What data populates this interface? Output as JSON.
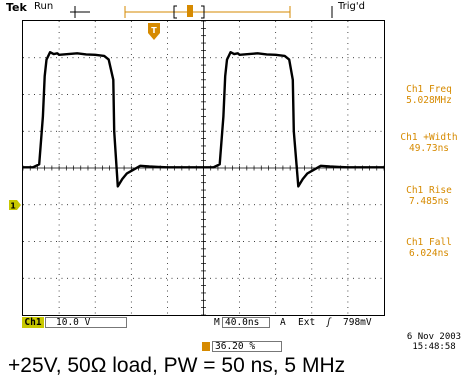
{
  "header": {
    "brand": "Tek",
    "run_state": "Run",
    "trigger_status": "Trig'd",
    "trigger_marker": "T"
  },
  "measurements": [
    {
      "label": "Ch1 Freq",
      "value": "5.028MHz"
    },
    {
      "label": "Ch1 +Width",
      "value": "49.73ns"
    },
    {
      "label": "Ch1 Rise",
      "value": "7.485ns"
    },
    {
      "label": "Ch1 Fall",
      "value": "6.024ns"
    }
  ],
  "channel": {
    "marker": "1",
    "name": "Ch1",
    "scale": "10.0 V"
  },
  "timebase": {
    "prefix": "M",
    "value": "40.0ns",
    "trigger_source": "A",
    "trigger_type": "Ext",
    "trigger_slope": "ʃ",
    "trigger_level": "798mV"
  },
  "trigger_position": {
    "marker": "T",
    "value": "36.20 %"
  },
  "timestamp": {
    "date": "6 Nov 2003",
    "time": "15:48:58"
  },
  "caption": "+25V, 50Ω load, PW = 50 ns, 5 MHz",
  "colors": {
    "trace": "#000000",
    "grid": "#000000",
    "trigger_accent": "#d68a00",
    "channel_accent": "#c8c800",
    "background": "#ffffff"
  },
  "chart_data": {
    "type": "line",
    "series": [
      {
        "x": [
          -200,
          -189,
          -182,
          -178,
          -176,
          -174,
          -170,
          -166,
          -162,
          -160,
          -150,
          -140,
          -130,
          -120,
          -110,
          -105,
          -100,
          -99,
          -95,
          -90,
          -85,
          -80,
          -70,
          -60,
          -50,
          -40,
          -30,
          -20,
          -10,
          0,
          11,
          18,
          22,
          24,
          26,
          30,
          34,
          38,
          40,
          50,
          60,
          70,
          80,
          90,
          95,
          99,
          100,
          105,
          110,
          115,
          120,
          130,
          140,
          150,
          160,
          170,
          180,
          190,
          200
        ],
        "y": [
          0.2,
          0.2,
          1,
          14,
          25,
          29.5,
          31.5,
          31,
          31.2,
          30.8,
          31,
          31.2,
          30.9,
          30.8,
          30.5,
          29.5,
          24,
          10,
          -5,
          -3,
          -1.5,
          -0.8,
          0.6,
          0.4,
          0.3,
          0.2,
          0.2,
          0.2,
          0.2,
          0.2,
          0.2,
          1,
          14,
          25,
          29.5,
          31.5,
          31,
          31.2,
          30.8,
          31,
          31.2,
          30.9,
          30.8,
          30.5,
          29.5,
          24,
          10,
          -5,
          -3,
          -1.5,
          -0.8,
          0.6,
          0.4,
          0.3,
          0.2,
          0.2,
          0.2,
          0.2,
          0.2
        ]
      }
    ],
    "xlim": [
      -200,
      200
    ],
    "ylim": [
      -40,
      40
    ],
    "grid": true
  }
}
